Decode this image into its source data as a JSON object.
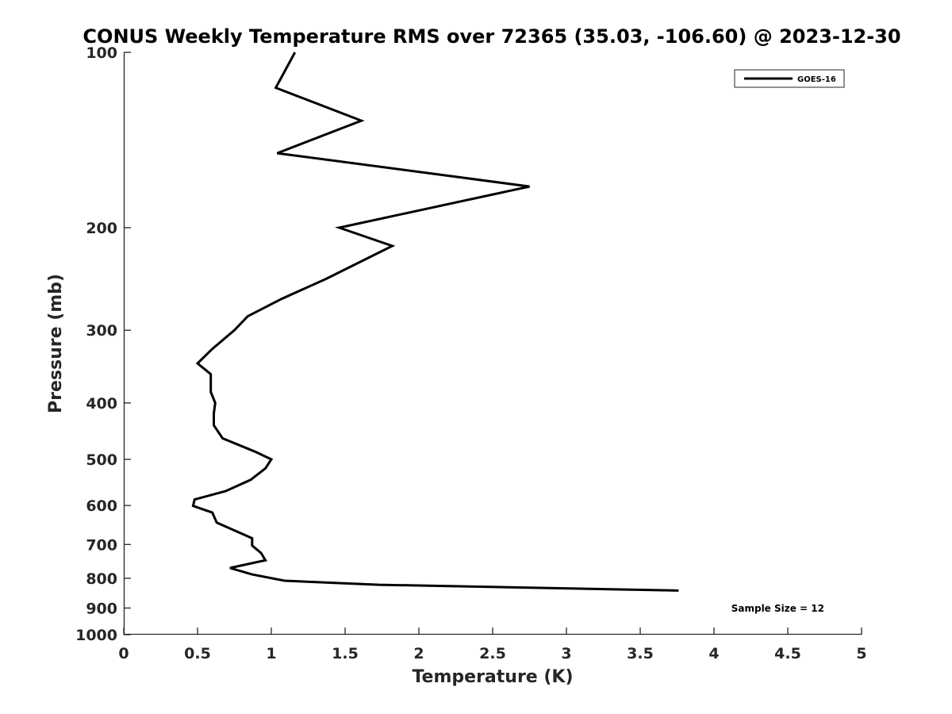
{
  "chart_data": {
    "type": "line",
    "title": "CONUS Weekly Temperature RMS over 72365 (35.03, -106.60) @ 2023-12-30",
    "xlabel": "Temperature (K)",
    "ylabel": "Pressure (mb)",
    "xlim": [
      0,
      5
    ],
    "ylim": [
      100,
      1000
    ],
    "y_scale": "log",
    "y_reversed": true,
    "x_ticks": [
      "0",
      "0.5",
      "1",
      "1.5",
      "2",
      "2.5",
      "3",
      "3.5",
      "4",
      "4.5",
      "5"
    ],
    "x_tick_values": [
      0,
      0.5,
      1,
      1.5,
      2,
      2.5,
      3,
      3.5,
      4,
      4.5,
      5
    ],
    "y_ticks": [
      "100",
      "200",
      "300",
      "400",
      "500",
      "600",
      "700",
      "800",
      "900",
      "1000"
    ],
    "y_tick_values": [
      100,
      200,
      300,
      400,
      500,
      600,
      700,
      800,
      900,
      1000
    ],
    "grid": false,
    "legend_position": "top-right",
    "annotation": "Sample Size = 12",
    "series": [
      {
        "name": "GOES-16",
        "color": "#000000",
        "points": [
          {
            "x": 1.16,
            "y": 100
          },
          {
            "x": 1.03,
            "y": 115
          },
          {
            "x": 1.61,
            "y": 131
          },
          {
            "x": 1.04,
            "y": 149
          },
          {
            "x": 2.75,
            "y": 170
          },
          {
            "x": 1.46,
            "y": 200
          },
          {
            "x": 1.82,
            "y": 215
          },
          {
            "x": 1.37,
            "y": 245
          },
          {
            "x": 1.07,
            "y": 265
          },
          {
            "x": 0.84,
            "y": 284
          },
          {
            "x": 0.75,
            "y": 300
          },
          {
            "x": 0.6,
            "y": 323
          },
          {
            "x": 0.5,
            "y": 342
          },
          {
            "x": 0.59,
            "y": 357
          },
          {
            "x": 0.59,
            "y": 383
          },
          {
            "x": 0.62,
            "y": 400
          },
          {
            "x": 0.61,
            "y": 417
          },
          {
            "x": 0.61,
            "y": 437
          },
          {
            "x": 0.67,
            "y": 460
          },
          {
            "x": 0.89,
            "y": 485
          },
          {
            "x": 1.0,
            "y": 500
          },
          {
            "x": 0.96,
            "y": 518
          },
          {
            "x": 0.86,
            "y": 542
          },
          {
            "x": 0.69,
            "y": 567
          },
          {
            "x": 0.48,
            "y": 586
          },
          {
            "x": 0.47,
            "y": 601
          },
          {
            "x": 0.6,
            "y": 617
          },
          {
            "x": 0.63,
            "y": 642
          },
          {
            "x": 0.87,
            "y": 683
          },
          {
            "x": 0.87,
            "y": 703
          },
          {
            "x": 0.93,
            "y": 724
          },
          {
            "x": 0.96,
            "y": 745
          },
          {
            "x": 0.72,
            "y": 768
          },
          {
            "x": 0.87,
            "y": 788
          },
          {
            "x": 1.09,
            "y": 808
          },
          {
            "x": 1.73,
            "y": 821
          },
          {
            "x": 3.76,
            "y": 840
          }
        ]
      }
    ]
  }
}
